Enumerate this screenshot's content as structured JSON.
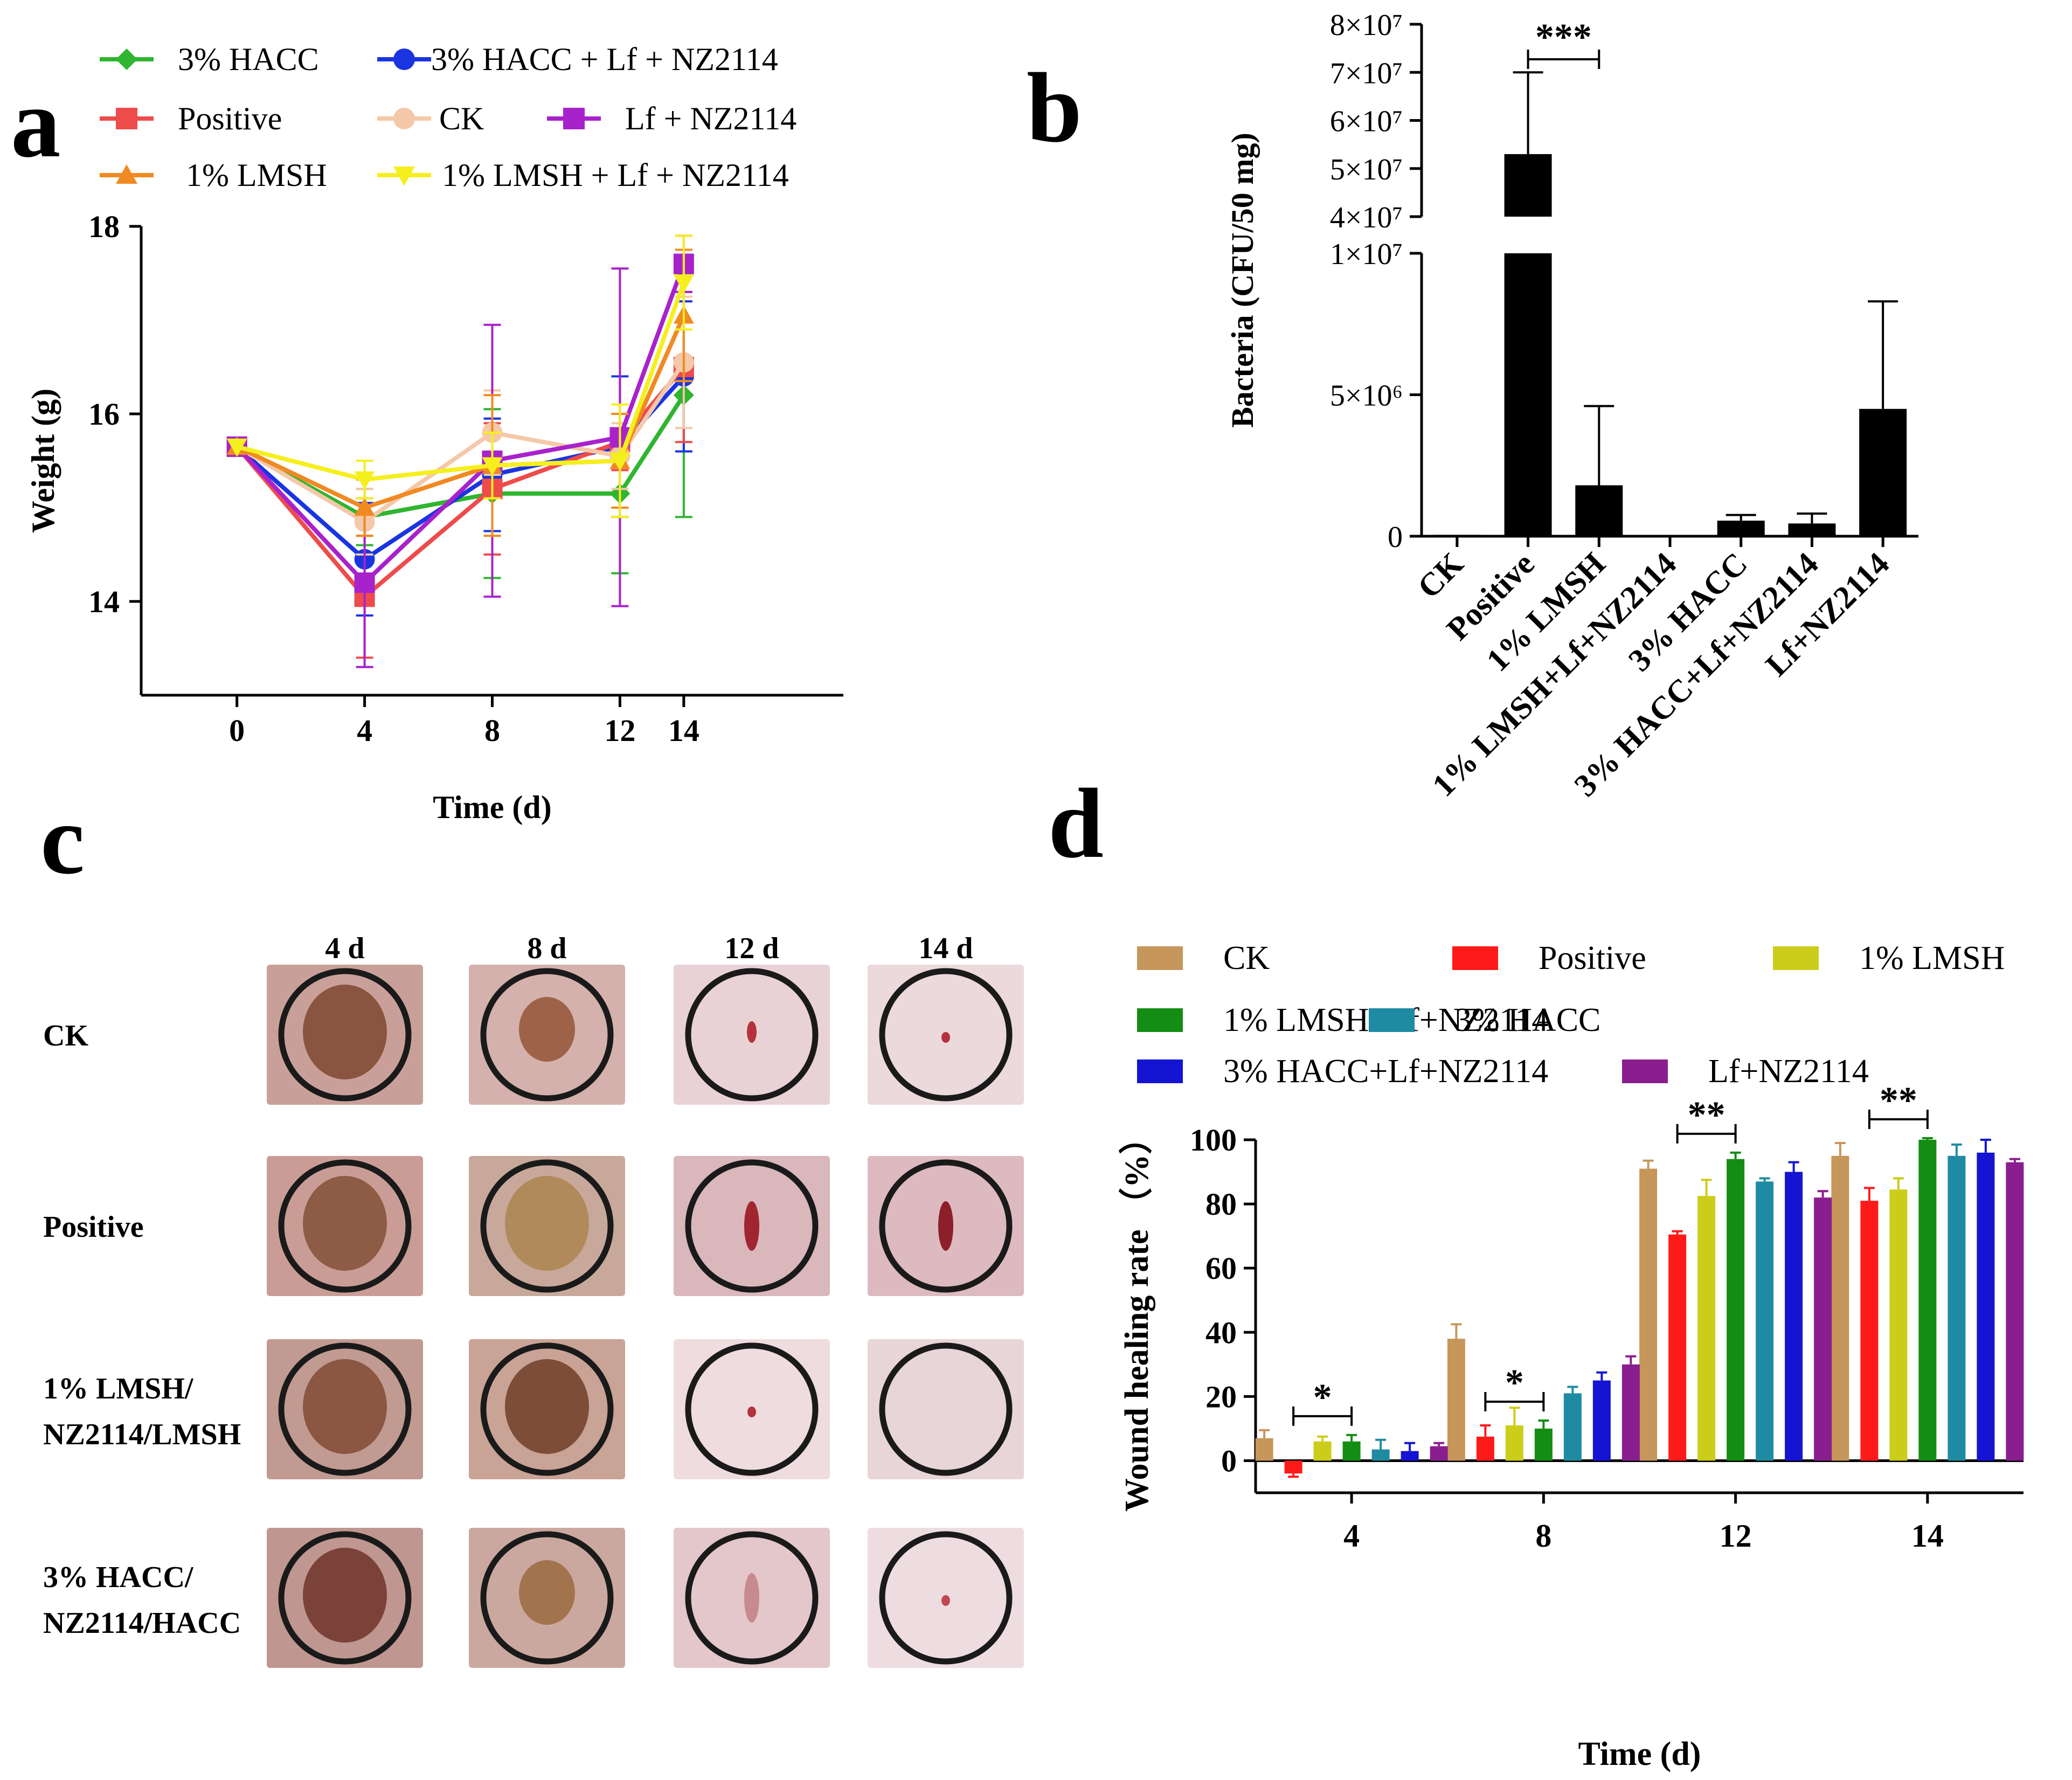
{
  "panels": {
    "a": "a",
    "b": "b",
    "c": "c",
    "d": "d"
  },
  "chart_data": [
    {
      "type": "line",
      "panel": "a",
      "xlabel": "Time (d)",
      "ylabel": "Weight (g)",
      "x": [
        0,
        4,
        8,
        12,
        14
      ],
      "xticks": [
        0,
        4,
        8,
        12,
        14
      ],
      "yticks": [
        14,
        16,
        18
      ],
      "xlim": [
        -3,
        19
      ],
      "ylim": [
        13,
        18
      ],
      "legend_position": "top",
      "series": [
        {
          "name": "3% HACC",
          "color": "#2fb52f",
          "marker": "diamond",
          "values": [
            15.65,
            14.9,
            15.15,
            15.15,
            16.2
          ],
          "errors": [
            0,
            0.3,
            0.9,
            0.85,
            1.3
          ]
        },
        {
          "name": "3% HACC + Lf + NZ2114",
          "color": "#1a35e0",
          "marker": "circle",
          "values": [
            15.65,
            14.45,
            15.35,
            15.65,
            16.4
          ],
          "errors": [
            0,
            0.6,
            0.6,
            0.75,
            0.8
          ]
        },
        {
          "name": "Positive",
          "color": "#ee4b4b",
          "marker": "square",
          "values": [
            15.65,
            14.05,
            15.2,
            15.7,
            16.5
          ],
          "errors": [
            0,
            0.65,
            0.7,
            0.3,
            0.8
          ]
        },
        {
          "name": "CK",
          "color": "#f4c8a8",
          "marker": "circle",
          "values": [
            15.65,
            14.85,
            15.8,
            15.55,
            16.55
          ],
          "errors": [
            0,
            0.35,
            0.45,
            0.35,
            0.7
          ]
        },
        {
          "name": "Lf + NZ2114",
          "color": "#a822cc",
          "marker": "square",
          "values": [
            15.65,
            14.2,
            15.5,
            15.75,
            17.6
          ],
          "errors": [
            0,
            0.9,
            1.45,
            1.8,
            0.3
          ]
        },
        {
          "name": "1% LMSH",
          "color": "#f08a22",
          "marker": "triangle-up",
          "values": [
            15.65,
            15.0,
            15.45,
            15.5,
            17.05
          ],
          "errors": [
            0,
            0.3,
            0.75,
            0.5,
            0.7
          ]
        },
        {
          "name": "1% LMSH + Lf + NZ2114",
          "color": "#f5ef1e",
          "marker": "triangle-down",
          "values": [
            15.65,
            15.3,
            15.45,
            15.5,
            17.4
          ],
          "errors": [
            0,
            0.2,
            0.35,
            0.6,
            0.5
          ]
        }
      ]
    },
    {
      "type": "bar",
      "panel": "b",
      "ylabel": "Bacteria (CFU/50 mg)",
      "categories": [
        "CK",
        "Positive",
        "1% LMSH",
        "1% LMSH+Lf+NZ2114",
        "3% HACC",
        "3% HACC+Lf+NZ2114",
        "Lf+NZ2114"
      ],
      "values": [
        50000,
        53000000,
        1800000,
        0,
        550000,
        450000,
        4500000
      ],
      "errors": [
        0,
        17000000,
        2800000,
        0,
        200000,
        350000,
        3800000
      ],
      "color": "#000000",
      "y_axis_break": {
        "lower_range": [
          0,
          10000000
        ],
        "upper_range": [
          40000000,
          80000000
        ]
      },
      "lower_ticks": [
        {
          "v": 0,
          "label": "0"
        },
        {
          "v": 5000000,
          "label": "5×10⁶"
        },
        {
          "v": 10000000,
          "label": "1×10⁷"
        }
      ],
      "upper_ticks": [
        {
          "v": 40000000,
          "label": "4×10⁷"
        },
        {
          "v": 50000000,
          "label": "5×10⁷"
        },
        {
          "v": 60000000,
          "label": "6×10⁷"
        },
        {
          "v": 70000000,
          "label": "7×10⁷"
        },
        {
          "v": 80000000,
          "label": "8×10⁷"
        }
      ],
      "annotations": [
        {
          "from": "Positive",
          "to": "1% LMSH",
          "label": "***"
        }
      ]
    },
    {
      "type": "bar",
      "panel": "d",
      "xlabel": "Time (d)",
      "ylabel": "Wound healing rate （%）",
      "categories": [
        "4",
        "8",
        "12",
        "14"
      ],
      "ylim": [
        -10,
        100
      ],
      "yticks": [
        0,
        20,
        40,
        60,
        80,
        100
      ],
      "legend_position": "top",
      "series": [
        {
          "name": "CK",
          "color": "#c6965a",
          "values": [
            7,
            38,
            91,
            95
          ],
          "errors": [
            2.5,
            4.5,
            2.5,
            4
          ]
        },
        {
          "name": "Positive",
          "color": "#ff1a1a",
          "values": [
            -4,
            7.5,
            70.5,
            81
          ],
          "errors": [
            1,
            3.5,
            1,
            4
          ]
        },
        {
          "name": "1% LMSH",
          "color": "#cccc1a",
          "values": [
            6,
            11,
            82.5,
            84.5
          ],
          "errors": [
            1.5,
            5.5,
            5,
            3.5
          ]
        },
        {
          "name": "1% LMSH+Lf+NZ2114",
          "color": "#138d13",
          "values": [
            6,
            10,
            94,
            100
          ],
          "errors": [
            2,
            2.5,
            2,
            0.5
          ]
        },
        {
          "name": "3% HACC",
          "color": "#1f8ba2",
          "values": [
            3.5,
            21,
            87,
            95
          ],
          "errors": [
            3,
            2,
            1,
            3.5
          ]
        },
        {
          "name": "3% HACC+Lf+NZ2114",
          "color": "#1414d2",
          "values": [
            3,
            25,
            90,
            96
          ],
          "errors": [
            2.5,
            2.5,
            3,
            4
          ]
        },
        {
          "name": "Lf+NZ2114",
          "color": "#8a1e8e",
          "values": [
            4.5,
            30,
            82,
            93
          ],
          "errors": [
            1,
            2.5,
            2,
            1
          ]
        }
      ],
      "significance": [
        {
          "category": "4",
          "from_series": 1,
          "to_series": 3,
          "label": "*"
        },
        {
          "category": "8",
          "from_series": 1,
          "to_series": 3,
          "label": "*"
        },
        {
          "category": "12",
          "from_series": 1,
          "to_series": 3,
          "label": "**"
        },
        {
          "category": "14",
          "from_series": 1,
          "to_series": 3,
          "label": "**"
        }
      ]
    }
  ],
  "panel_c": {
    "columns": [
      "4 d",
      "8 d",
      "12 d",
      "14 d"
    ],
    "rows": [
      {
        "label_lines": [
          "CK"
        ],
        "photos": [
          {
            "sc": "#c9a099",
            "fill": "#8a5540",
            "shape": "big"
          },
          {
            "sc": "#d4b1ac",
            "fill": "#9e6248",
            "shape": "mid"
          },
          {
            "sc": "#e9d2d6",
            "fill": "#b4323a",
            "shape": "spot"
          },
          {
            "sc": "#ecd9dc",
            "fill": "#b4323a",
            "shape": "dot"
          }
        ]
      },
      {
        "label_lines": [
          "Positive"
        ],
        "photos": [
          {
            "sc": "#c99d96",
            "fill": "#8e5b45",
            "shape": "big"
          },
          {
            "sc": "#c7a89a",
            "fill": "#b08a5a",
            "shape": "big"
          },
          {
            "sc": "#d9b7bb",
            "fill": "#a02530",
            "shape": "scar"
          },
          {
            "sc": "#dcbabf",
            "fill": "#8c1f2a",
            "shape": "scar"
          }
        ]
      },
      {
        "label_lines": [
          "1% LMSH/",
          "NZ2114/LMSH"
        ],
        "photos": [
          {
            "sc": "#c19a92",
            "fill": "#8b5642",
            "shape": "big"
          },
          {
            "sc": "#c9a396",
            "fill": "#7d4d38",
            "shape": "big"
          },
          {
            "sc": "#eedcdf",
            "fill": "#b4323a",
            "shape": "dot"
          },
          {
            "sc": "#e8d5d8",
            "fill": "#e8d5d8",
            "shape": "none"
          }
        ]
      },
      {
        "label_lines": [
          "3% HACC/",
          "NZ2114/HACC"
        ],
        "photos": [
          {
            "sc": "#c09690",
            "fill": "#7a4238",
            "shape": "big"
          },
          {
            "sc": "#cba89f",
            "fill": "#a2744e",
            "shape": "mid"
          },
          {
            "sc": "#e4c7cb",
            "fill": "#c78a8e",
            "shape": "scar"
          },
          {
            "sc": "#eedde0",
            "fill": "#c24650",
            "shape": "dot"
          }
        ]
      }
    ]
  }
}
